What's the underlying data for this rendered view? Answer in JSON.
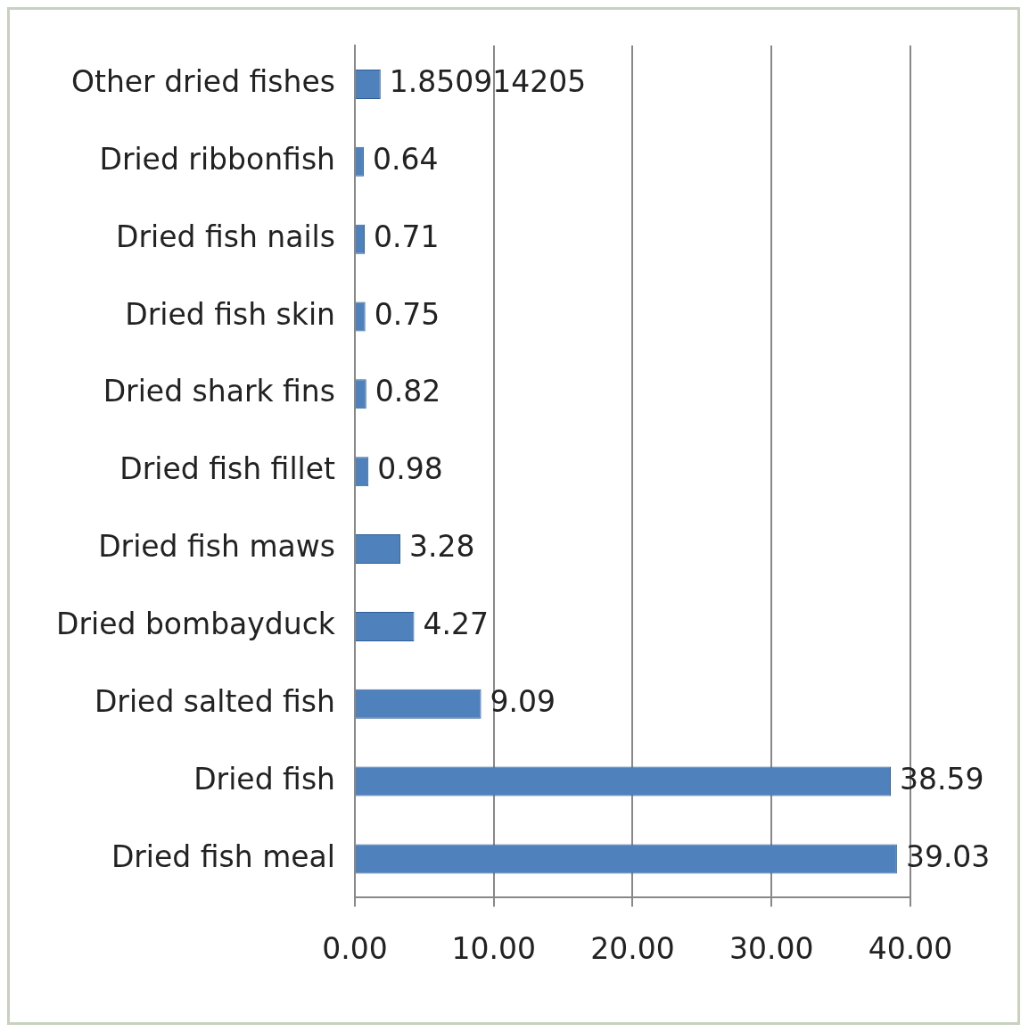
{
  "chart_data": {
    "type": "bar",
    "orientation": "horizontal",
    "categories": [
      "Other dried fishes",
      "Dried ribbonfish",
      "Dried fish nails",
      "Dried fish skin",
      "Dried shark fins",
      "Dried fish fillet",
      "Dried fish maws",
      "Dried bombayduck",
      "Dried salted fish",
      "Dried fish",
      "Dried fish meal"
    ],
    "values": [
      1.850914205,
      0.64,
      0.71,
      0.75,
      0.82,
      0.98,
      3.28,
      4.27,
      9.09,
      38.59,
      39.03
    ],
    "color": "#4f81bd",
    "xlim": [
      0,
      40
    ],
    "xticks": [
      {
        "value": 0,
        "label": "0.00"
      },
      {
        "value": 10,
        "label": "10.00"
      },
      {
        "value": 20,
        "label": "20.00"
      },
      {
        "value": 30,
        "label": "30.00"
      },
      {
        "value": 40,
        "label": "40.00"
      }
    ],
    "grid": "x",
    "data_labels": true,
    "legend": false
  }
}
